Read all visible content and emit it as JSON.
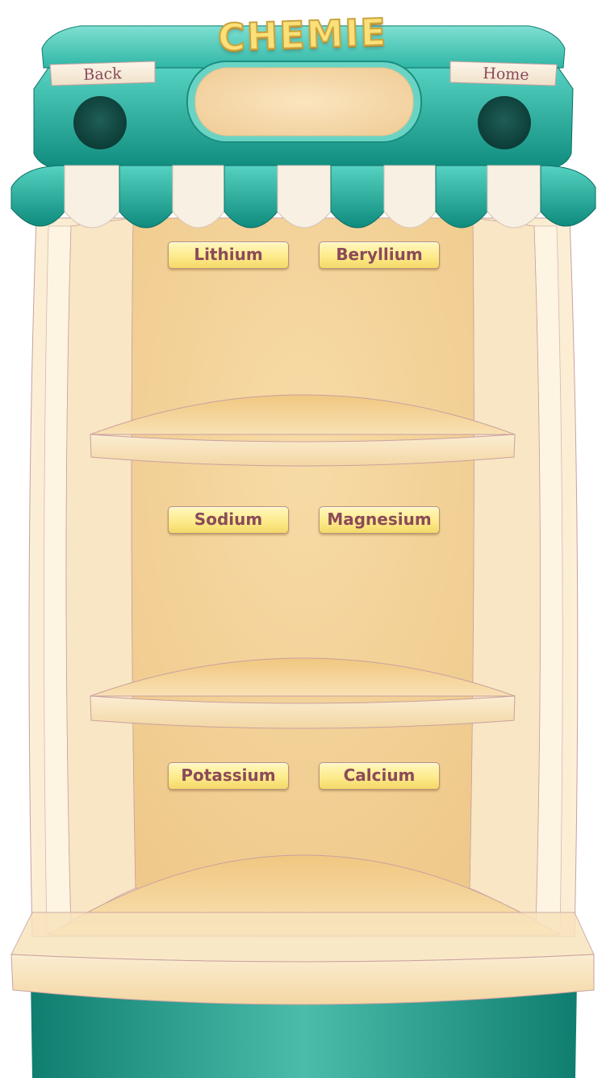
{
  "game": {
    "title": "CHEMIE",
    "back_label": "Back",
    "home_label": "Home"
  },
  "shelf": {
    "elements": [
      {
        "label": "Lithium"
      },
      {
        "label": "Beryllium"
      },
      {
        "label": "Sodium"
      },
      {
        "label": "Magnesium"
      },
      {
        "label": "Potassium"
      },
      {
        "label": "Calcium"
      }
    ]
  },
  "colors": {
    "awning_teal": "#2fb6a6",
    "awning_teal_dark": "#13867a",
    "cabinet_cream": "#f7deb0",
    "cabinet_inner": "#efc98b",
    "button_yellow": "#fdeb8a",
    "label_text": "#8b4a59"
  }
}
